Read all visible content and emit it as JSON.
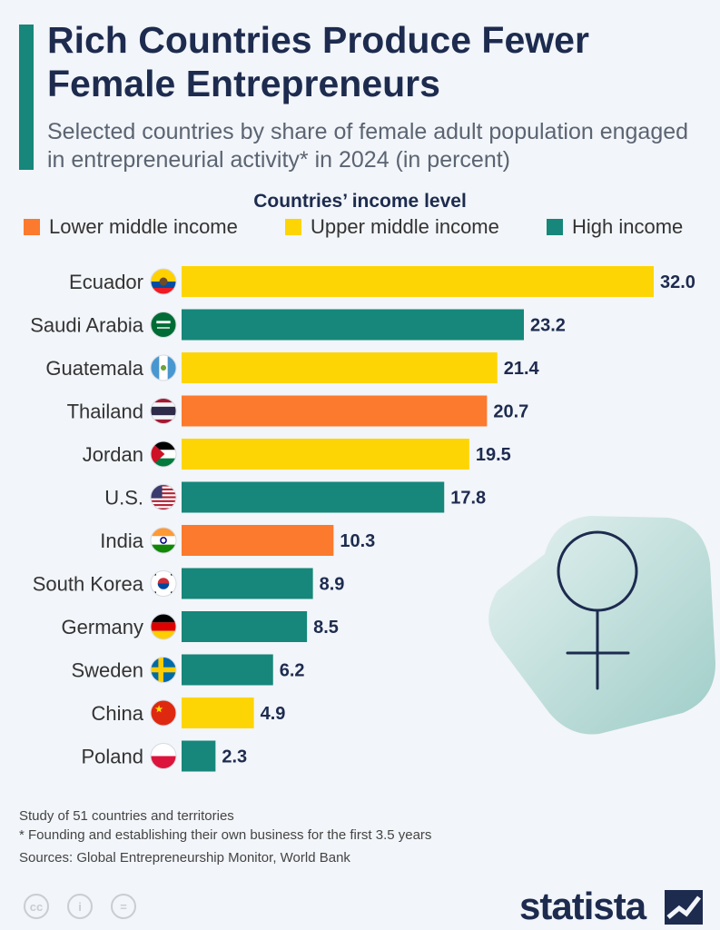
{
  "header": {
    "title": "Rich Countries Produce Fewer Female Entrepreneurs",
    "subtitle": "Selected countries by share of female adult population engaged in entrepreneurial activity* in 2024 (in percent)"
  },
  "legend": {
    "title": "Countries’ income level",
    "items": [
      {
        "label": "Lower middle income",
        "color": "#fb7a2d"
      },
      {
        "label": "Upper middle income",
        "color": "#fed504"
      },
      {
        "label": "High income",
        "color": "#16877a"
      }
    ]
  },
  "colors": {
    "lower_middle": "#fb7a2d",
    "upper_middle": "#fed504",
    "high": "#16877a",
    "title": "#1d2b4f"
  },
  "chart_data": {
    "type": "bar",
    "orientation": "horizontal",
    "title": "Rich Countries Produce Fewer Female Entrepreneurs",
    "categories": [
      "Ecuador",
      "Saudi Arabia",
      "Guatemala",
      "Thailand",
      "Jordan",
      "U.S.",
      "India",
      "South Korea",
      "Germany",
      "Sweden",
      "China",
      "Poland"
    ],
    "values": [
      32.0,
      23.2,
      21.4,
      20.7,
      19.5,
      17.8,
      10.3,
      8.9,
      8.5,
      6.2,
      4.9,
      2.3
    ],
    "value_labels": [
      "32.0",
      "23.2",
      "21.4",
      "20.7",
      "19.5",
      "17.8",
      "10.3",
      "8.9",
      "8.5",
      "6.2",
      "4.9",
      "2.3"
    ],
    "income_levels": [
      "Upper middle income",
      "High income",
      "Upper middle income",
      "Lower middle income",
      "Upper middle income",
      "High income",
      "Lower middle income",
      "High income",
      "High income",
      "High income",
      "Upper middle income",
      "High income"
    ],
    "flag_icons": [
      "ecuador-flag-icon",
      "saudi-arabia-flag-icon",
      "guatemala-flag-icon",
      "thailand-flag-icon",
      "jordan-flag-icon",
      "us-flag-icon",
      "india-flag-icon",
      "south-korea-flag-icon",
      "germany-flag-icon",
      "sweden-flag-icon",
      "china-flag-icon",
      "poland-flag-icon"
    ],
    "xlim": [
      0,
      32
    ],
    "grid": false,
    "legend_position": "top"
  },
  "notes": [
    "Study of 51 countries and territories",
    "* Founding and establishing their own business for the first 3.5 years",
    "Sources: Global Entrepreneurship Monitor, World Bank"
  ],
  "footer": {
    "brand": "statista",
    "license_icons": [
      "cc-icon",
      "attribution-icon",
      "no-derivatives-icon"
    ],
    "license_glyphs": [
      "cc",
      "i",
      "="
    ]
  },
  "decoration": {
    "icon": "female-symbol-icon"
  }
}
